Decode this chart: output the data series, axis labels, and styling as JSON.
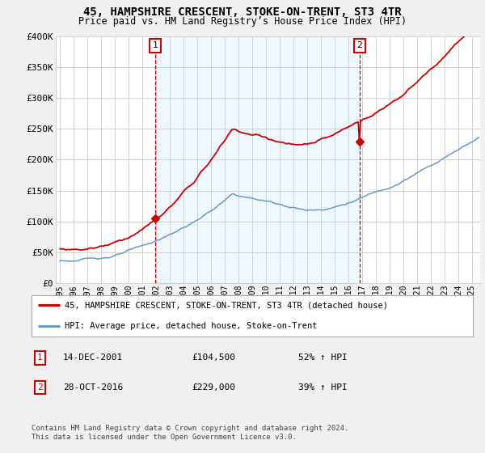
{
  "title": "45, HAMPSHIRE CRESCENT, STOKE-ON-TRENT, ST3 4TR",
  "subtitle": "Price paid vs. HM Land Registry’s House Price Index (HPI)",
  "ylim": [
    0,
    400000
  ],
  "xlim_start": 1994.7,
  "xlim_end": 2025.6,
  "yticks": [
    0,
    50000,
    100000,
    150000,
    200000,
    250000,
    300000,
    350000,
    400000
  ],
  "ytick_labels": [
    "£0",
    "£50K",
    "£100K",
    "£150K",
    "£200K",
    "£250K",
    "£300K",
    "£350K",
    "£400K"
  ],
  "xticks": [
    1995,
    1996,
    1997,
    1998,
    1999,
    2000,
    2001,
    2002,
    2003,
    2004,
    2005,
    2006,
    2007,
    2008,
    2009,
    2010,
    2011,
    2012,
    2013,
    2014,
    2015,
    2016,
    2017,
    2018,
    2019,
    2020,
    2021,
    2022,
    2023,
    2024,
    2025
  ],
  "t1_x": 2001.95,
  "t1_y": 104500,
  "t2_x": 2016.82,
  "t2_y": 229000,
  "legend_line1": "45, HAMPSHIRE CRESCENT, STOKE-ON-TRENT, ST3 4TR (detached house)",
  "legend_line2": "HPI: Average price, detached house, Stoke-on-Trent",
  "ann1_date": "14-DEC-2001",
  "ann1_price": "£104,500",
  "ann1_hpi": "52% ↑ HPI",
  "ann2_date": "28-OCT-2016",
  "ann2_price": "£229,000",
  "ann2_hpi": "39% ↑ HPI",
  "footer": "Contains HM Land Registry data © Crown copyright and database right 2024.\nThis data is licensed under the Open Government Licence v3.0.",
  "red": "#cc0000",
  "blue": "#6699cc",
  "shade_blue": "#ddeeff",
  "bg": "#f0f0f0",
  "white": "#ffffff",
  "grid": "#cccccc",
  "box_text": "#000000"
}
